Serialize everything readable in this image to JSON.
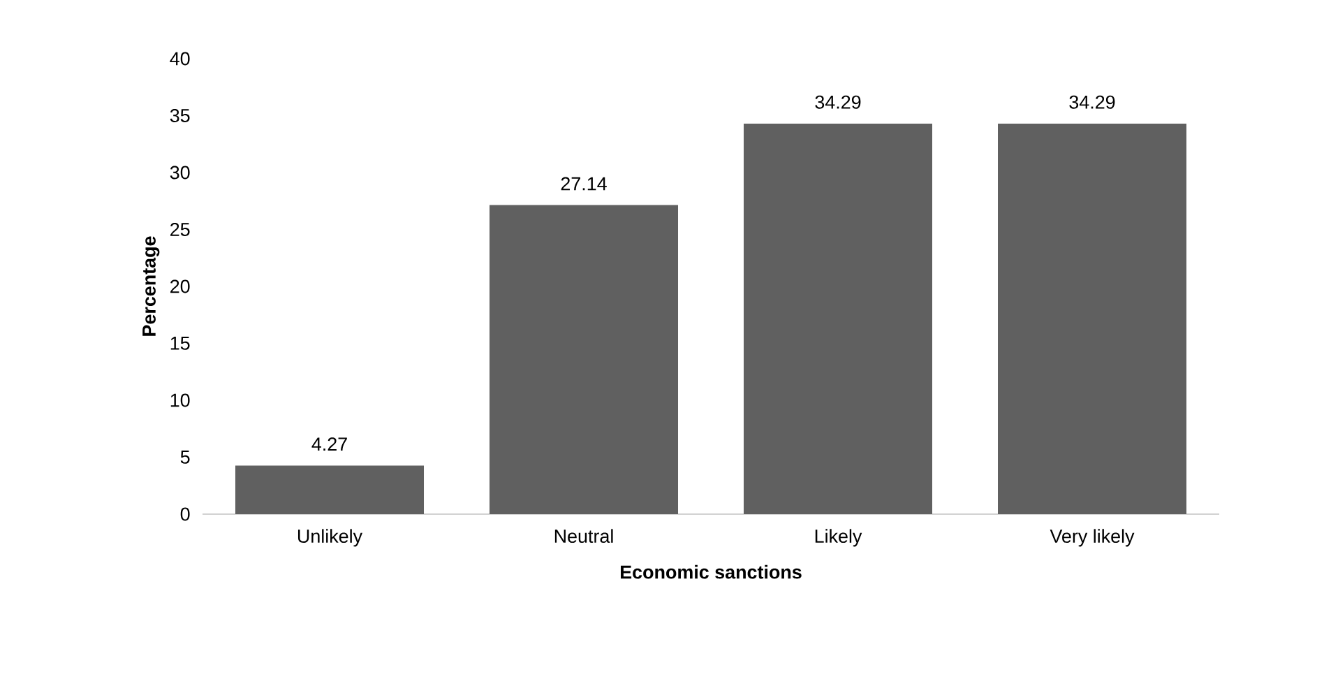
{
  "chart_data": {
    "type": "bar",
    "xlabel": "Economic sanctions",
    "ylabel": "Percentage",
    "categories": [
      "Unlikely",
      "Neutral",
      "Likely",
      "Very likely"
    ],
    "values": [
      4.27,
      27.14,
      34.29,
      34.29
    ],
    "color": "#606060",
    "ylim": [
      0,
      40
    ],
    "yticks": [
      0,
      5,
      10,
      15,
      20,
      25,
      30,
      35,
      40
    ],
    "data_labels": true
  }
}
